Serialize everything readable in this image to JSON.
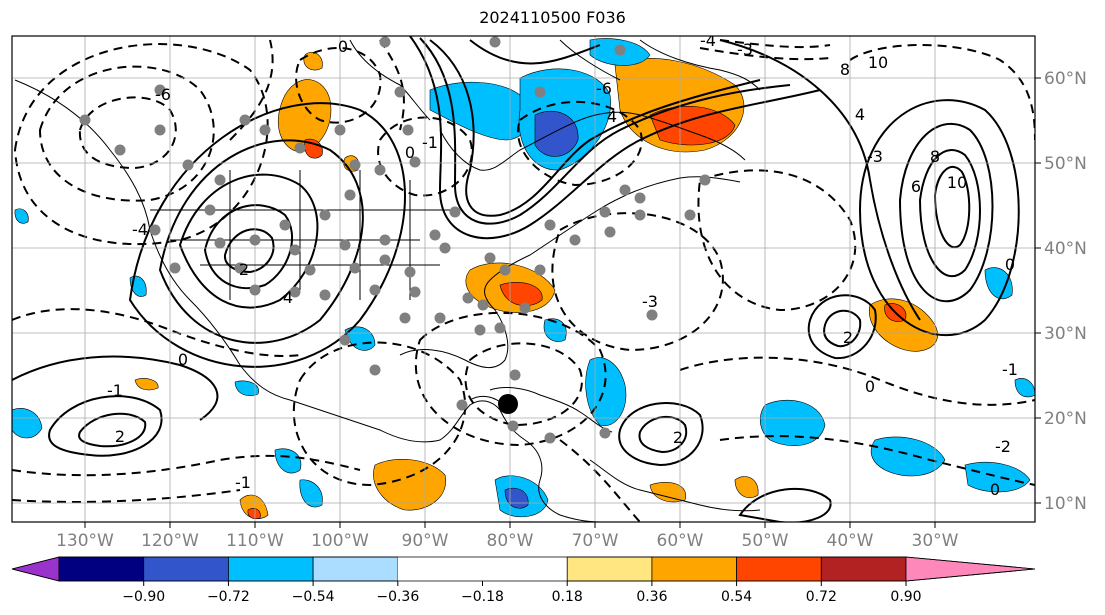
{
  "title": "2024110500 F036",
  "lon_labels": [
    "130°W",
    "120°W",
    "110°W",
    "100°W",
    "90°W",
    "80°W",
    "70°W",
    "60°W",
    "50°W",
    "40°W",
    "30°W"
  ],
  "lat_labels": [
    "60°N",
    "50°N",
    "40°N",
    "30°N",
    "20°N",
    "10°N"
  ],
  "contour_labels": [
    "0",
    "-1",
    "-2",
    "-3",
    "-4",
    "-6",
    "2",
    "4",
    "6",
    "8",
    "10"
  ],
  "colorbar": {
    "tick_labels": [
      "−0.90",
      "−0.72",
      "−0.54",
      "−0.36",
      "−0.18",
      "0.18",
      "0.36",
      "0.54",
      "0.72",
      "0.90"
    ],
    "colors": [
      "#9933cc",
      "#000080",
      "#3355cc",
      "#00bfff",
      "#aaddff",
      "#ffffff",
      "#ffe680",
      "#ffa500",
      "#ff4500",
      "#b22222",
      "#ff88bb"
    ]
  }
}
